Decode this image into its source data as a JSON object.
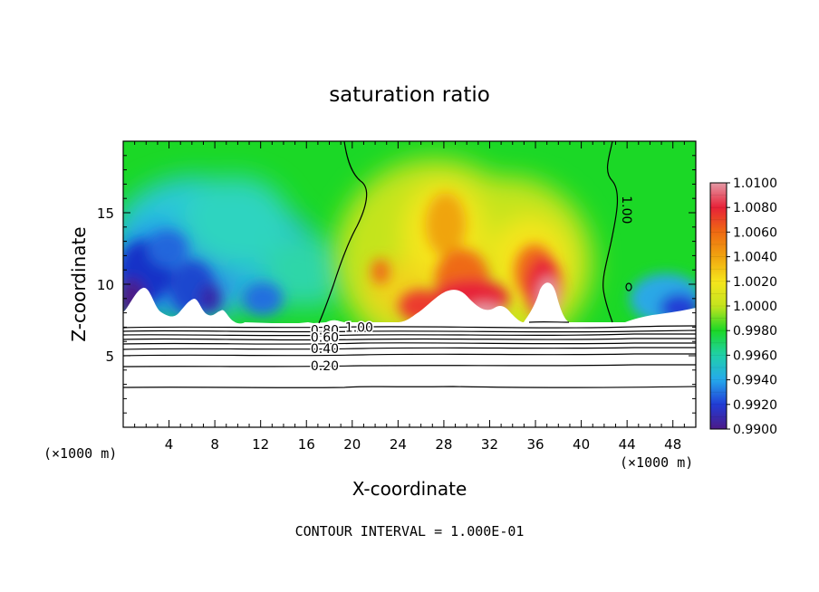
{
  "chart_data": {
    "type": "heatmap",
    "title": "saturation ratio",
    "xlabel": "X-coordinate",
    "ylabel": "Z-coordinate",
    "x_units": "(×1000 m)",
    "xlim": [
      0,
      50
    ],
    "ylim": [
      0,
      20
    ],
    "x_ticks": [
      4,
      8,
      12,
      16,
      20,
      24,
      28,
      32,
      36,
      40,
      44,
      48
    ],
    "y_ticks": [
      5,
      10,
      15
    ],
    "footer": "CONTOUR INTERVAL = 1.000E-01",
    "colorbar": {
      "values": [
        1.01,
        1.008,
        1.006,
        1.004,
        1.002,
        1.0,
        0.998,
        0.996,
        0.994,
        0.992,
        0.99
      ],
      "labels": [
        "1.0100",
        "1.0080",
        "1.0060",
        "1.0040",
        "1.0020",
        "1.0000",
        "0.9980",
        "0.9960",
        "0.9940",
        "0.9920",
        "0.9900"
      ],
      "colors": [
        "#e49aa6",
        "#e72238",
        "#ef6a12",
        "#f0a410",
        "#f6e51c",
        "#c4e41e",
        "#1bd826",
        "#20d0a9",
        "#25a9ec",
        "#213cd6",
        "#4c1a87"
      ]
    },
    "contour_labels": [
      {
        "text": "1.00",
        "x": 44.0,
        "y": 15.2
      },
      {
        "text": "1.00",
        "x": 20.6,
        "y": 7.0
      },
      {
        "text": "0.80",
        "x": 17.6,
        "y": 6.8
      },
      {
        "text": "0.60",
        "x": 17.6,
        "y": 6.3
      },
      {
        "text": "0.40",
        "x": 17.6,
        "y": 5.5
      },
      {
        "text": "0.20",
        "x": 17.6,
        "y": 4.3
      }
    ]
  }
}
